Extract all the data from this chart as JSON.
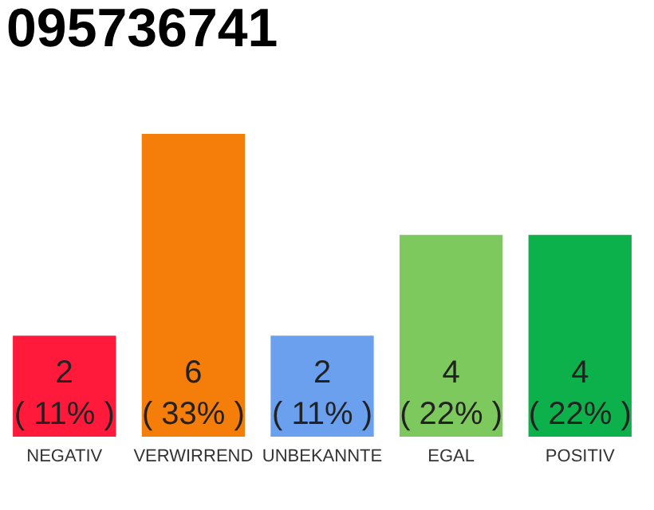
{
  "chart_data": {
    "type": "bar",
    "title": "095736741",
    "categories": [
      "NEGATIV",
      "VERWIRREND",
      "UNBEKANNTE",
      "EGAL",
      "POSITIV"
    ],
    "values": [
      2,
      6,
      2,
      4,
      4
    ],
    "colors": [
      "#ff1a3c",
      "#f57d0a",
      "#6aa0ee",
      "#7dc95e",
      "#0cb14b"
    ],
    "value_labels": [
      "2\n( 11% )",
      "6\n( 33% )",
      "2\n( 11% )",
      "4\n( 22% )",
      "4\n( 22% )"
    ]
  }
}
